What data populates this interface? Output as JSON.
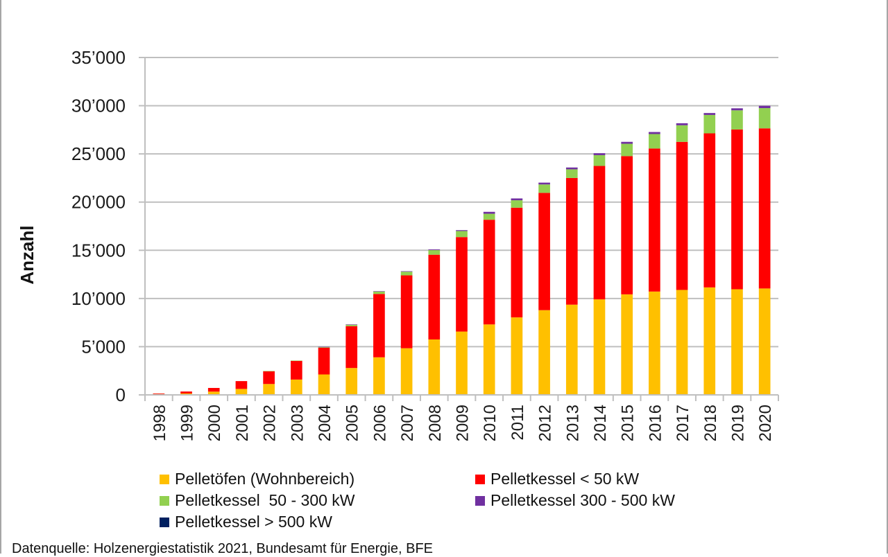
{
  "chart_data": {
    "type": "bar",
    "stacked": true,
    "title": "",
    "xlabel": "",
    "ylabel": "Anzahl",
    "ylim": [
      0,
      35000
    ],
    "yticks": [
      0,
      5000,
      10000,
      15000,
      20000,
      25000,
      30000,
      35000
    ],
    "ytick_labels": [
      "0",
      "5’000",
      "10’000",
      "15’000",
      "20’000",
      "25’000",
      "30’000",
      "35’000"
    ],
    "grid": "horizontal",
    "legend_position": "bottom",
    "categories": [
      "1998",
      "1999",
      "2000",
      "2001",
      "2002",
      "2003",
      "2004",
      "2005",
      "2006",
      "2007",
      "2008",
      "2009",
      "2010",
      "2011",
      "2012",
      "2013",
      "2014",
      "2015",
      "2016",
      "2017",
      "2018",
      "2019",
      "2020"
    ],
    "series": [
      {
        "name": "Pelletöfen (Wohnbereich)",
        "color": "#FFC000",
        "values": [
          90,
          150,
          340,
          620,
          1130,
          1590,
          2120,
          2790,
          3900,
          4840,
          5750,
          6570,
          7310,
          8040,
          8790,
          9360,
          9910,
          10430,
          10720,
          10890,
          11150,
          10960,
          11040
        ]
      },
      {
        "name": "Pelletkessel < 50 kW",
        "color": "#FF0000",
        "values": [
          60,
          200,
          380,
          810,
          1340,
          1950,
          2780,
          4340,
          6570,
          7560,
          8790,
          9800,
          10860,
          11380,
          12170,
          13140,
          13840,
          14340,
          14840,
          15360,
          15980,
          16570,
          16610
        ]
      },
      {
        "name": "Pelletkessel  50 - 300 kW",
        "color": "#92D050",
        "values": [
          0,
          0,
          0,
          0,
          10,
          20,
          80,
          160,
          260,
          380,
          480,
          630,
          620,
          770,
          870,
          900,
          1120,
          1280,
          1500,
          1720,
          1910,
          1990,
          2100
        ]
      },
      {
        "name": "Pelletkessel 300 - 500 kW",
        "color": "#7030A0",
        "values": [
          0,
          0,
          0,
          0,
          0,
          0,
          10,
          20,
          30,
          50,
          70,
          90,
          200,
          190,
          190,
          190,
          200,
          200,
          210,
          210,
          200,
          210,
          240
        ]
      },
      {
        "name": "Pelletkessel > 500 kW",
        "color": "#002060",
        "values": [
          0,
          0,
          0,
          0,
          0,
          0,
          0,
          0,
          0,
          0,
          0,
          0,
          0,
          0,
          0,
          0,
          0,
          0,
          0,
          0,
          0,
          0,
          0
        ]
      }
    ],
    "annotations": []
  },
  "source_text": "Datenquelle: Holzenergiestatistik 2021, Bundesamt für Energie, BFE"
}
